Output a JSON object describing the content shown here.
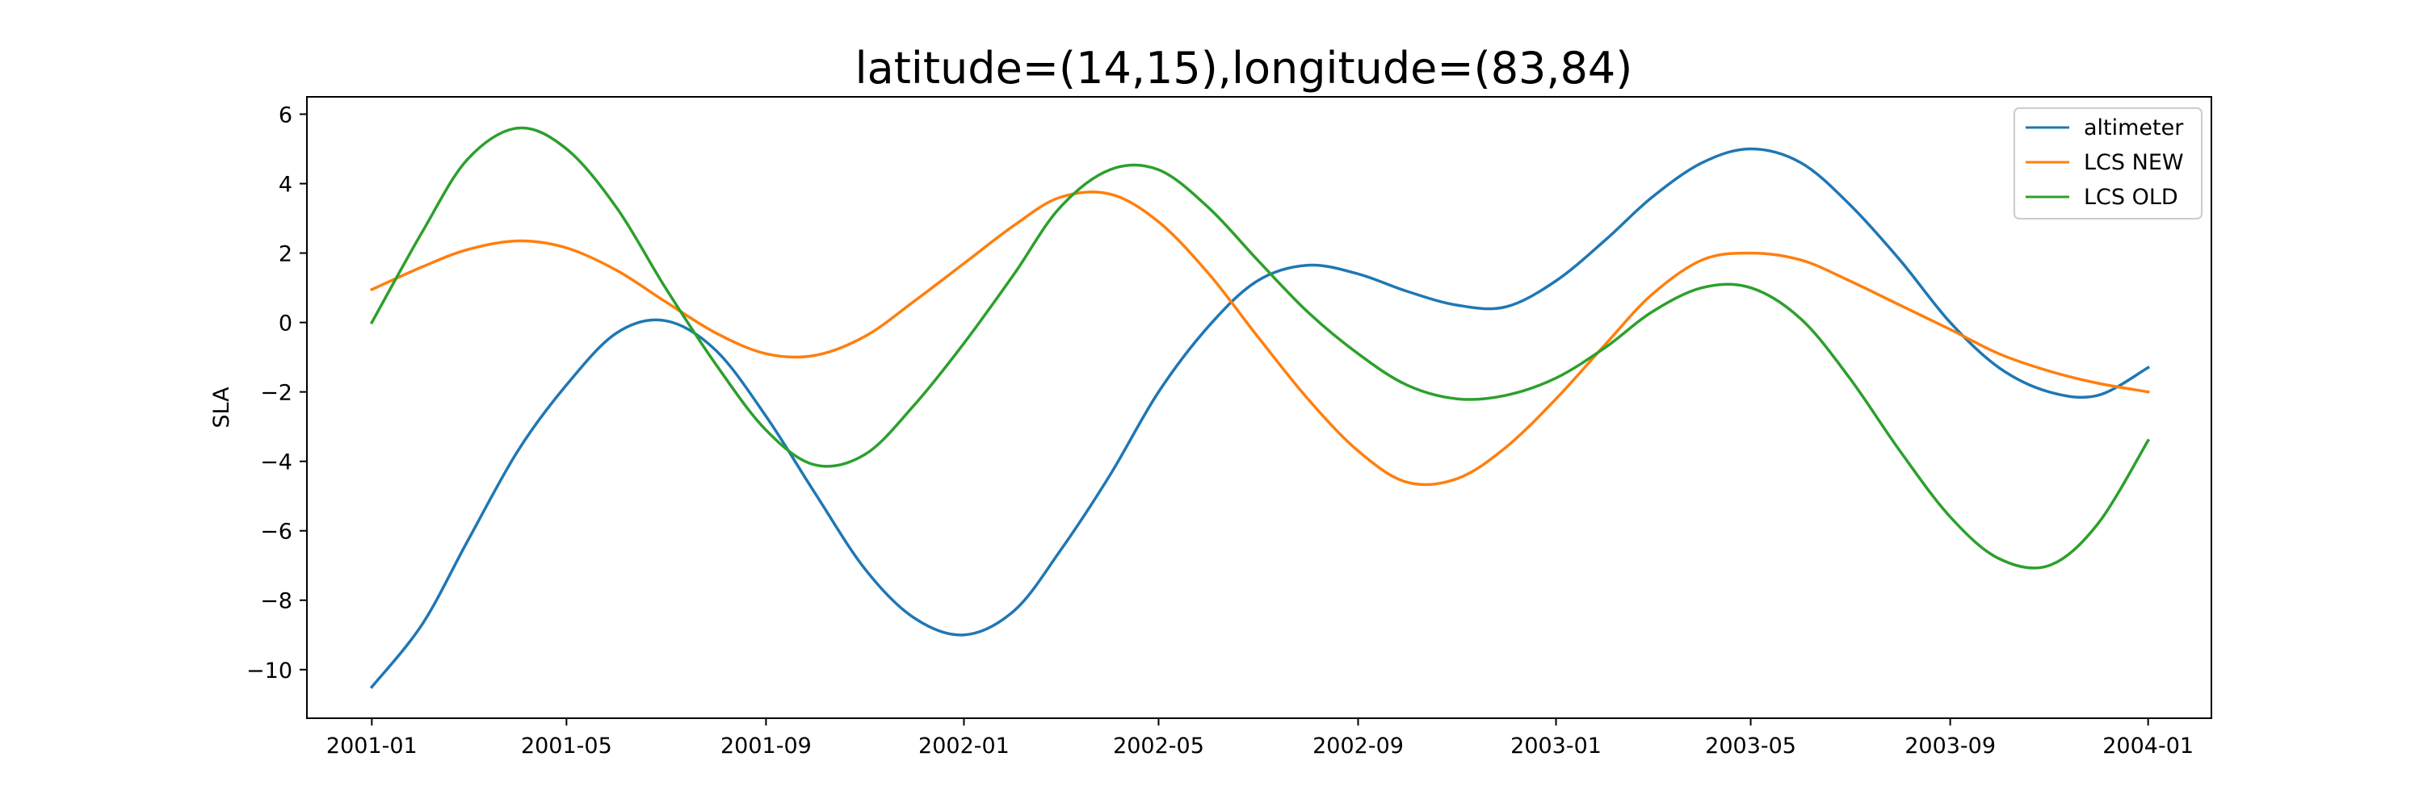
{
  "chart_data": {
    "type": "line",
    "title": "latitude=(14,15),longitude=(83,84)",
    "xlabel": "",
    "ylabel": "SLA",
    "xlim": [
      "2000-11-22",
      "2004-02-09"
    ],
    "ylim": [
      -11.4,
      6.5
    ],
    "x_ticks": [
      "2001-01",
      "2001-05",
      "2001-09",
      "2002-01",
      "2002-05",
      "2002-09",
      "2003-01",
      "2003-05",
      "2003-09",
      "2004-01"
    ],
    "y_ticks": [
      6,
      4,
      2,
      0,
      -2,
      -4,
      -6,
      -8,
      -10
    ],
    "grid": false,
    "legend_position": "top-right",
    "series": [
      {
        "name": "altimeter",
        "color": "#1f77b4",
        "points": [
          [
            "2001-01-01",
            -10.5
          ],
          [
            "2001-02-01",
            -8.7
          ],
          [
            "2001-03-01",
            -6.3
          ],
          [
            "2001-04-01",
            -3.7
          ],
          [
            "2001-05-01",
            -1.8
          ],
          [
            "2001-06-01",
            -0.3
          ],
          [
            "2001-07-01",
            0.05
          ],
          [
            "2001-08-01",
            -0.8
          ],
          [
            "2001-09-01",
            -2.7
          ],
          [
            "2001-10-01",
            -4.9
          ],
          [
            "2001-11-01",
            -7.1
          ],
          [
            "2001-12-01",
            -8.5
          ],
          [
            "2002-01-01",
            -9.0
          ],
          [
            "2002-02-01",
            -8.3
          ],
          [
            "2002-03-01",
            -6.6
          ],
          [
            "2002-04-01",
            -4.4
          ],
          [
            "2002-05-01",
            -2.0
          ],
          [
            "2002-06-01",
            -0.1
          ],
          [
            "2002-07-01",
            1.2
          ],
          [
            "2002-08-01",
            1.65
          ],
          [
            "2002-09-01",
            1.4
          ],
          [
            "2002-10-01",
            0.9
          ],
          [
            "2002-11-01",
            0.5
          ],
          [
            "2002-12-01",
            0.45
          ],
          [
            "2003-01-01",
            1.2
          ],
          [
            "2003-02-01",
            2.4
          ],
          [
            "2003-03-01",
            3.6
          ],
          [
            "2003-04-01",
            4.6
          ],
          [
            "2003-05-01",
            5.0
          ],
          [
            "2003-06-01",
            4.6
          ],
          [
            "2003-07-01",
            3.4
          ],
          [
            "2003-08-01",
            1.8
          ],
          [
            "2003-09-01",
            0.0
          ],
          [
            "2003-10-01",
            -1.3
          ],
          [
            "2003-11-01",
            -2.0
          ],
          [
            "2003-12-01",
            -2.1
          ],
          [
            "2004-01-01",
            -1.3
          ]
        ]
      },
      {
        "name": "LCS NEW",
        "color": "#ff7f0e",
        "points": [
          [
            "2001-01-01",
            0.95
          ],
          [
            "2001-02-01",
            1.6
          ],
          [
            "2001-03-01",
            2.1
          ],
          [
            "2001-04-01",
            2.35
          ],
          [
            "2001-05-01",
            2.15
          ],
          [
            "2001-06-01",
            1.5
          ],
          [
            "2001-07-01",
            0.6
          ],
          [
            "2001-08-01",
            -0.3
          ],
          [
            "2001-09-01",
            -0.9
          ],
          [
            "2001-10-01",
            -0.95
          ],
          [
            "2001-11-01",
            -0.4
          ],
          [
            "2001-12-01",
            0.6
          ],
          [
            "2002-01-01",
            1.7
          ],
          [
            "2002-02-01",
            2.8
          ],
          [
            "2002-03-01",
            3.6
          ],
          [
            "2002-04-01",
            3.7
          ],
          [
            "2002-05-01",
            2.9
          ],
          [
            "2002-06-01",
            1.4
          ],
          [
            "2002-07-01",
            -0.4
          ],
          [
            "2002-08-01",
            -2.2
          ],
          [
            "2002-09-01",
            -3.7
          ],
          [
            "2002-10-01",
            -4.6
          ],
          [
            "2002-11-01",
            -4.5
          ],
          [
            "2002-12-01",
            -3.6
          ],
          [
            "2003-01-01",
            -2.2
          ],
          [
            "2003-02-01",
            -0.6
          ],
          [
            "2003-03-01",
            0.8
          ],
          [
            "2003-04-01",
            1.8
          ],
          [
            "2003-05-01",
            2.0
          ],
          [
            "2003-06-01",
            1.8
          ],
          [
            "2003-07-01",
            1.2
          ],
          [
            "2003-08-01",
            0.5
          ],
          [
            "2003-09-01",
            -0.2
          ],
          [
            "2003-10-01",
            -0.9
          ],
          [
            "2003-11-01",
            -1.4
          ],
          [
            "2003-12-01",
            -1.75
          ],
          [
            "2004-01-01",
            -2.0
          ]
        ]
      },
      {
        "name": "LCS OLD",
        "color": "#2ca02c",
        "points": [
          [
            "2001-01-01",
            0.0
          ],
          [
            "2001-02-01",
            2.6
          ],
          [
            "2001-03-01",
            4.7
          ],
          [
            "2001-04-01",
            5.6
          ],
          [
            "2001-05-01",
            5.0
          ],
          [
            "2001-06-01",
            3.3
          ],
          [
            "2001-07-01",
            1.0
          ],
          [
            "2001-08-01",
            -1.2
          ],
          [
            "2001-09-01",
            -3.1
          ],
          [
            "2001-10-01",
            -4.1
          ],
          [
            "2001-11-01",
            -3.8
          ],
          [
            "2001-12-01",
            -2.4
          ],
          [
            "2002-01-01",
            -0.6
          ],
          [
            "2002-02-01",
            1.4
          ],
          [
            "2002-03-01",
            3.3
          ],
          [
            "2002-04-01",
            4.4
          ],
          [
            "2002-05-01",
            4.4
          ],
          [
            "2002-06-01",
            3.3
          ],
          [
            "2002-07-01",
            1.8
          ],
          [
            "2002-08-01",
            0.3
          ],
          [
            "2002-09-01",
            -0.9
          ],
          [
            "2002-10-01",
            -1.8
          ],
          [
            "2002-11-01",
            -2.2
          ],
          [
            "2002-12-01",
            -2.1
          ],
          [
            "2003-01-01",
            -1.6
          ],
          [
            "2003-02-01",
            -0.7
          ],
          [
            "2003-03-01",
            0.3
          ],
          [
            "2003-04-01",
            1.0
          ],
          [
            "2003-05-01",
            1.0
          ],
          [
            "2003-06-01",
            0.1
          ],
          [
            "2003-07-01",
            -1.6
          ],
          [
            "2003-08-01",
            -3.7
          ],
          [
            "2003-09-01",
            -5.6
          ],
          [
            "2003-10-01",
            -6.8
          ],
          [
            "2003-11-01",
            -7.0
          ],
          [
            "2003-12-01",
            -5.8
          ],
          [
            "2004-01-01",
            -3.4
          ]
        ]
      }
    ]
  }
}
